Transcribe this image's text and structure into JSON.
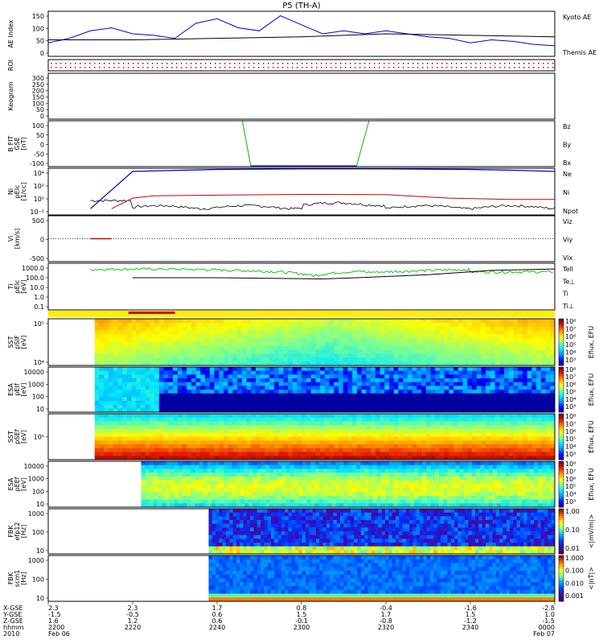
{
  "title": "P5 (TH-A)",
  "colors": {
    "kyoto": "#0000cc",
    "themis": "#000000",
    "bz": "#cc0000",
    "by": "#00bb00",
    "bx": "#0000cc",
    "ne": "#cc0000",
    "ni": "#000000",
    "npot": "#0000cc",
    "tell": "#000000",
    "tiperp": "#00bb00"
  },
  "panels": [
    {
      "key": "ae",
      "ylabels": [
        "AE Index"
      ],
      "ticks": [
        "150",
        "100",
        "50",
        "0"
      ],
      "legend": [
        {
          "text": "Kyoto AE",
          "color": "#0000cc"
        },
        {
          "text": "Themis AE",
          "color": "#000000"
        }
      ]
    },
    {
      "key": "roi",
      "ylabels": [
        "ROI"
      ],
      "ticks": [],
      "legend": []
    },
    {
      "key": "keogram",
      "ylabels": [
        "Keogram"
      ],
      "ticks": [
        "300",
        "250",
        "200",
        "150",
        "100",
        "50",
        "0"
      ],
      "legend": []
    },
    {
      "key": "bfit",
      "ylabels": [
        "B FIT",
        "GSE",
        "[nT]"
      ],
      "ticks": [
        "100",
        "50",
        "0",
        "-50",
        "-100"
      ],
      "legend": [
        {
          "text": "Bz",
          "color": "#cc0000"
        },
        {
          "text": "By",
          "color": "#00bb00"
        },
        {
          "text": "Bx",
          "color": "#0000cc"
        }
      ]
    },
    {
      "key": "ni",
      "ylabels": [
        "Ni",
        "pEIc",
        "[1/cc]"
      ],
      "ticks": [
        "10⁴",
        "10²",
        "10⁰",
        "10⁻²"
      ],
      "legend": [
        {
          "text": "Ne",
          "color": "#cc0000"
        },
        {
          "text": "Ni",
          "color": "#000000"
        },
        {
          "text": "Npot",
          "color": "#0000cc"
        }
      ]
    },
    {
      "key": "vi",
      "ylabels": [
        "Vi",
        "[km/s]"
      ],
      "ticks": [
        "500",
        "0",
        "-500"
      ],
      "legend": [
        {
          "text": "Viz",
          "color": "#cc0000"
        },
        {
          "text": "Viy",
          "color": "#00bb00"
        },
        {
          "text": "Vix",
          "color": "#0000cc"
        }
      ]
    },
    {
      "key": "ti",
      "ylabels": [
        "Ti",
        "pEIc",
        "[eV]"
      ],
      "ticks": [
        "1000.0",
        "100.0",
        "10.0",
        "1.0",
        "0.1"
      ],
      "legend": [
        {
          "text": "Tell",
          "color": "#000000"
        },
        {
          "text": "Te⊥",
          "color": "#cc0000"
        },
        {
          "text": "Ti",
          "color": "#00bb00"
        },
        {
          "text": "Ti⊥",
          "color": "#0000cc"
        }
      ]
    },
    {
      "key": "sst_i",
      "ylabels": [
        "SST",
        "pSIF",
        "[eV]"
      ],
      "ticks": [
        "10⁵",
        "10⁴"
      ],
      "cbar": "Eflux, EFU",
      "cbticks": [
        "10⁸",
        "10⁷",
        "10⁶",
        "10⁵",
        "10⁴",
        "10³"
      ]
    },
    {
      "key": "esa_i",
      "ylabels": [
        "ESA",
        "pEIf",
        "[eV]"
      ],
      "ticks": [
        "10000",
        "1000",
        "100",
        "10"
      ],
      "cbar": "Eflux, EFU",
      "cbticks": [
        "10⁸",
        "10⁷",
        "10⁶",
        "10⁵",
        "10⁴",
        "10³"
      ]
    },
    {
      "key": "sst_e",
      "ylabels": [
        "SST",
        "pSEf",
        "[eV]"
      ],
      "ticks": [
        "10⁵"
      ],
      "cbar": "Eflux, EFU",
      "cbticks": [
        "10⁸",
        "10⁷",
        "10⁶",
        "10⁵",
        "10⁴",
        "10³"
      ]
    },
    {
      "key": "esa_e",
      "ylabels": [
        "ESA",
        "pEEf",
        "[eV]"
      ],
      "ticks": [
        "10000",
        "1000",
        "100",
        "10"
      ],
      "cbar": "Eflux, EFU",
      "cbticks": [
        "10⁸",
        "10⁷",
        "10⁶",
        "10⁵",
        "10⁴",
        "10³"
      ]
    },
    {
      "key": "fbk_e",
      "ylabels": [
        "FBK",
        "efp12",
        "[Hz]"
      ],
      "ticks": [
        "1000",
        "100",
        "10"
      ],
      "cbar": "<|mV/m|>",
      "cbticks": [
        "1.00",
        "0.10",
        "0.01"
      ]
    },
    {
      "key": "fbk_b",
      "ylabels": [
        "FBK",
        "scm1",
        "[Hz]"
      ],
      "ticks": [
        "1000",
        "100",
        "10"
      ],
      "cbar": "<|nT|>",
      "cbticks": [
        "1.000",
        "0.100",
        "0.010",
        "0.001"
      ]
    }
  ],
  "xaxis": {
    "row_labels": [
      "X-GSE",
      "Y-GSE",
      "Z-GSE",
      "hhmm",
      "2010"
    ],
    "columns": [
      {
        "vals": [
          "2.3",
          "-1.5",
          "1.6",
          "2200",
          "Feb 06"
        ]
      },
      {
        "vals": [
          "2.3",
          "-0.5",
          "1.2",
          "2220",
          ""
        ]
      },
      {
        "vals": [
          "1.7",
          "0.6",
          "0.6",
          "2240",
          ""
        ]
      },
      {
        "vals": [
          "0.8",
          "1.5",
          "-0.1",
          "2300",
          ""
        ]
      },
      {
        "vals": [
          "-0.4",
          "1.7",
          "-0.8",
          "2320",
          ""
        ]
      },
      {
        "vals": [
          "-1.6",
          "1.5",
          "-1.2",
          "2340",
          ""
        ]
      },
      {
        "vals": [
          "-2.8",
          "1.0",
          "-1.5",
          "0000",
          "Feb 07"
        ]
      }
    ]
  },
  "chart_data": {
    "type": "line",
    "title": "P5 (TH-A)",
    "x_range": [
      "2010-02-06 22:00",
      "2010-02-07 00:00"
    ],
    "ae_series": [
      {
        "name": "Kyoto AE",
        "t": [
          0,
          5,
          10,
          15,
          20,
          25,
          30,
          35,
          40,
          45,
          50,
          55,
          60,
          65,
          70,
          75,
          80,
          85,
          90,
          95,
          100,
          105,
          110,
          115,
          120
        ],
        "values": [
          45,
          60,
          85,
          95,
          75,
          70,
          60,
          110,
          125,
          95,
          85,
          135,
          105,
          75,
          85,
          75,
          85,
          75,
          65,
          60,
          45,
          55,
          50,
          40,
          35
        ]
      },
      {
        "name": "Themis AE",
        "t": [
          0,
          20,
          40,
          60,
          80,
          100,
          120
        ],
        "values": [
          55,
          55,
          60,
          65,
          75,
          70,
          65
        ]
      }
    ],
    "density_series": [
      {
        "name": "Npot",
        "t": [
          10,
          15,
          20,
          40,
          60,
          80,
          100,
          110,
          120
        ],
        "values": [
          0.01,
          10,
          10000,
          20000,
          25000,
          25000,
          20000,
          15000,
          10000
        ]
      }
    ]
  }
}
